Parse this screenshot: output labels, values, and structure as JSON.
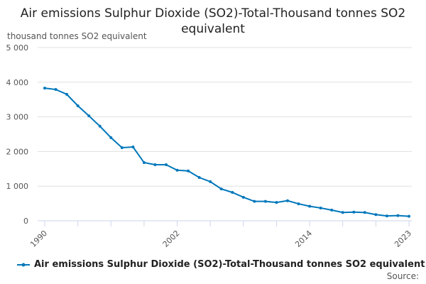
{
  "chart_data": {
    "type": "line",
    "title": "Air emissions Sulphur Dioxide (SO2)-Total-Thousand tonnes SO2 equivalent",
    "ylabel": "thousand tonnes SO2 equivalent",
    "xlabel": "",
    "ylim": [
      0,
      5000
    ],
    "yticks": [
      "0",
      "1 000",
      "2 000",
      "3 000",
      "4 000",
      "5 000"
    ],
    "xtick_labels": [
      "1990",
      "2002",
      "2014",
      "2023"
    ],
    "grid": true,
    "legend_position": "bottom",
    "color": "#0077bb",
    "series": [
      {
        "name": "Air emissions Sulphur Dioxide (SO2)-Total-Thousand tonnes SO2 equivalent",
        "x": [
          1990,
          1991,
          1992,
          1993,
          1994,
          1995,
          1996,
          1997,
          1998,
          1999,
          2000,
          2001,
          2002,
          2003,
          2004,
          2005,
          2006,
          2007,
          2008,
          2009,
          2010,
          2011,
          2012,
          2013,
          2014,
          2015,
          2016,
          2017,
          2018,
          2019,
          2020,
          2021,
          2022,
          2023
        ],
        "values": [
          3830,
          3790,
          3650,
          3320,
          3030,
          2730,
          2400,
          2110,
          2130,
          1680,
          1620,
          1620,
          1460,
          1440,
          1250,
          1130,
          920,
          820,
          680,
          560,
          560,
          530,
          580,
          490,
          420,
          370,
          310,
          240,
          250,
          240,
          180,
          140,
          150,
          130
        ]
      }
    ]
  },
  "source_label": "Source:"
}
